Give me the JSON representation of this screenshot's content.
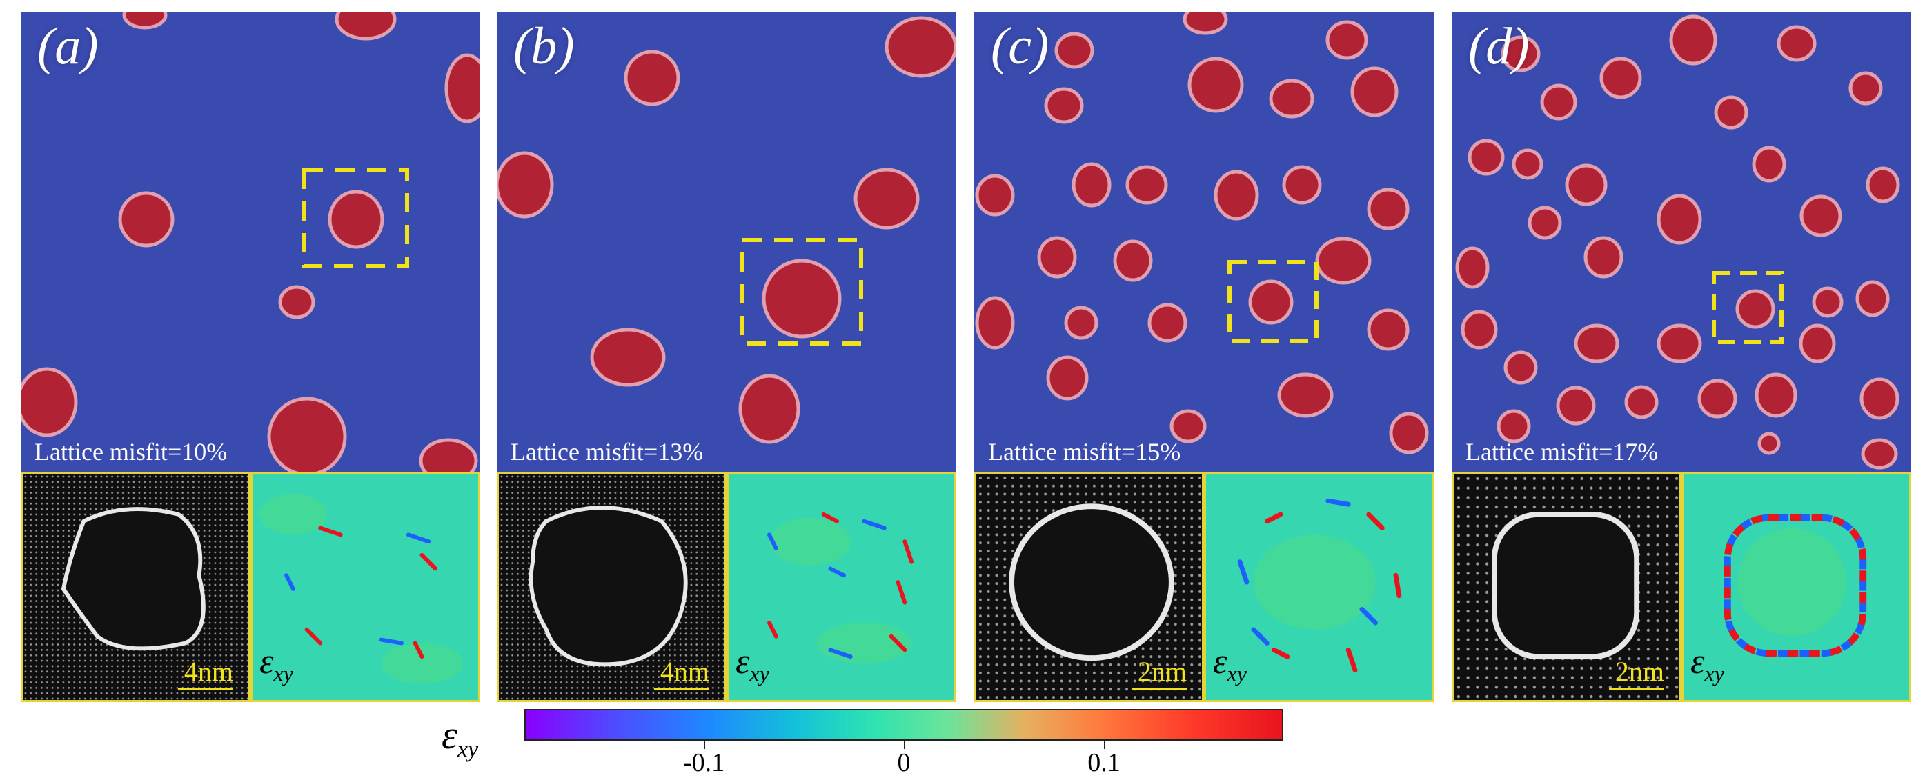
{
  "panels": [
    {
      "label": "(a)",
      "misfit": "Lattice misfit=10%",
      "scale": "4nm"
    },
    {
      "label": "(b)",
      "misfit": "Lattice misfit=13%",
      "scale": "4nm"
    },
    {
      "label": "(c)",
      "misfit": "Lattice misfit=15%",
      "scale": "2nm"
    },
    {
      "label": "(d)",
      "misfit": "Lattice misfit=17%",
      "scale": "2nm"
    }
  ],
  "strain_symbol_main": "ε",
  "strain_symbol_sub": "xy",
  "colorbar": {
    "ticks": [
      "-0.1",
      "0",
      "0.1"
    ],
    "colors": [
      "#8a00ff",
      "#1e88ff",
      "#2ee3b0",
      "#ff7a3d",
      "#e8141e"
    ]
  },
  "colors": {
    "matrix": "#3a4bb0",
    "precipitate": "#b22235",
    "highlight_box": "#f2e21a",
    "inset_border": "#e4d43a",
    "strain_bg": "#35d6b0"
  }
}
